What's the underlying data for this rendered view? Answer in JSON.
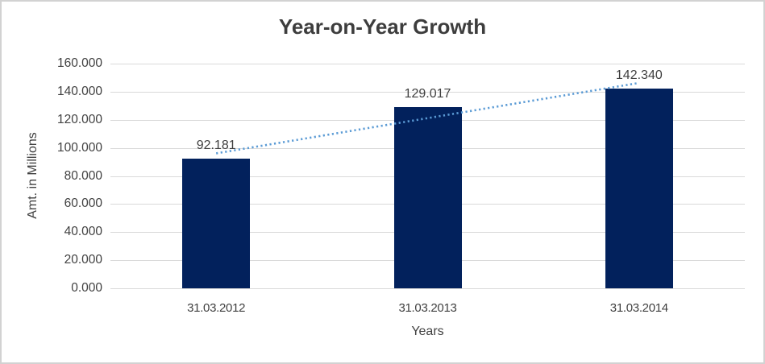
{
  "window": {
    "background": "#ffffff",
    "border_color": "#d2d2d2"
  },
  "chart_data": {
    "type": "bar",
    "title": "Year-on-Year Growth",
    "xlabel": "Years",
    "ylabel": "Amt. in Millions",
    "categories": [
      "31.03.2012",
      "31.03.2013",
      "31.03.2014"
    ],
    "values": [
      92.181,
      129.017,
      142.34
    ],
    "value_labels": [
      "92.181",
      "129.017",
      "142.340"
    ],
    "ylim": [
      0,
      160
    ],
    "ytick_step": 20,
    "ytick_labels": [
      "0.000",
      "20.000",
      "40.000",
      "60.000",
      "80.000",
      "100.000",
      "120.000",
      "140.000",
      "160.000"
    ],
    "grid": "horizontal",
    "legend": "none",
    "bar_color": "#02215C",
    "gridline_color": "#D9D9D9",
    "text_color": "#404040",
    "trendline": {
      "type": "linear",
      "style": "dotted",
      "color": "#5B9BD5"
    }
  }
}
